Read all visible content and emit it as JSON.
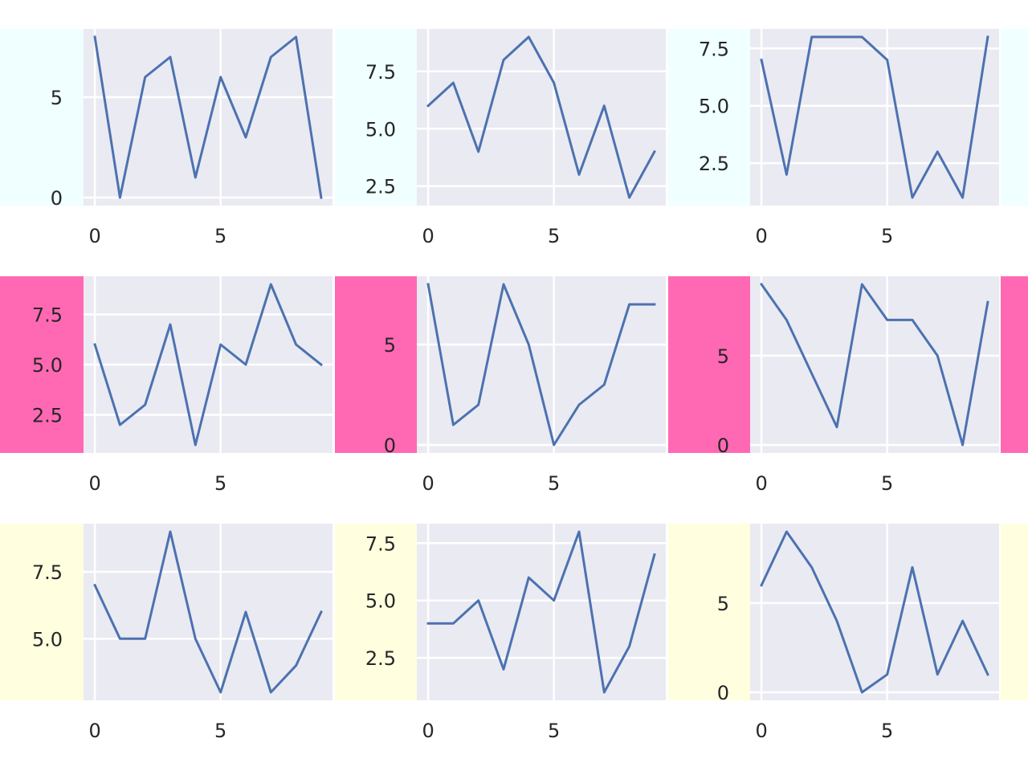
{
  "chart_data": [
    {
      "type": "line",
      "row_color": "#F0FFFF",
      "x": [
        0,
        1,
        2,
        3,
        4,
        5,
        6,
        7,
        8,
        9
      ],
      "y": [
        8,
        0,
        6,
        7,
        1,
        6,
        3,
        7,
        8,
        0
      ],
      "ylim": [
        -0.4,
        8.4
      ],
      "xlim": [
        -0.45,
        9.45
      ],
      "xticks": [
        0,
        5
      ],
      "yticks": [
        0,
        5
      ],
      "ytick_labels": [
        "0",
        "5"
      ],
      "grid": true
    },
    {
      "type": "line",
      "row_color": "#F0FFFF",
      "x": [
        0,
        1,
        2,
        3,
        4,
        5,
        6,
        7,
        8,
        9
      ],
      "y": [
        6,
        7,
        4,
        8,
        9,
        7,
        3,
        6,
        2,
        4
      ],
      "ylim": [
        1.65,
        9.35
      ],
      "xlim": [
        -0.45,
        9.45
      ],
      "xticks": [
        0,
        5
      ],
      "yticks": [
        2.5,
        5,
        7.5
      ],
      "ytick_labels": [
        "2.5",
        "5.0",
        "7.5"
      ],
      "grid": true
    },
    {
      "type": "line",
      "row_color": "#F0FFFF",
      "x": [
        0,
        1,
        2,
        3,
        4,
        5,
        6,
        7,
        8,
        9
      ],
      "y": [
        7,
        2,
        8,
        8,
        8,
        7,
        1,
        3,
        1,
        8
      ],
      "ylim": [
        0.65,
        8.35
      ],
      "xlim": [
        -0.45,
        9.45
      ],
      "xticks": [
        0,
        5
      ],
      "yticks": [
        2.5,
        5,
        7.5
      ],
      "ytick_labels": [
        "2.5",
        "5.0",
        "7.5"
      ],
      "grid": true
    },
    {
      "type": "line",
      "row_color": "#FF69B4",
      "x": [
        0,
        1,
        2,
        3,
        4,
        5,
        6,
        7,
        8,
        9
      ],
      "y": [
        6,
        2,
        3,
        7,
        1,
        6,
        5,
        9,
        6,
        5
      ],
      "ylim": [
        0.6,
        9.4
      ],
      "xlim": [
        -0.45,
        9.45
      ],
      "xticks": [
        0,
        5
      ],
      "yticks": [
        2.5,
        5,
        7.5
      ],
      "ytick_labels": [
        "2.5",
        "5.0",
        "7.5"
      ],
      "grid": true
    },
    {
      "type": "line",
      "row_color": "#FF69B4",
      "x": [
        0,
        1,
        2,
        3,
        4,
        5,
        6,
        7,
        8,
        9
      ],
      "y": [
        8,
        1,
        2,
        8,
        5,
        0,
        2,
        3,
        7,
        7
      ],
      "ylim": [
        -0.4,
        8.4
      ],
      "xlim": [
        -0.45,
        9.45
      ],
      "xticks": [
        0,
        5
      ],
      "yticks": [
        0,
        5
      ],
      "ytick_labels": [
        "0",
        "5"
      ],
      "grid": true
    },
    {
      "type": "line",
      "row_color": "#FF69B4",
      "x": [
        0,
        1,
        2,
        3,
        4,
        5,
        6,
        7,
        8,
        9
      ],
      "y": [
        9,
        7,
        4,
        1,
        9,
        7,
        7,
        5,
        0,
        8
      ],
      "ylim": [
        -0.45,
        9.45
      ],
      "xlim": [
        -0.45,
        9.45
      ],
      "xticks": [
        0,
        5
      ],
      "yticks": [
        0,
        5
      ],
      "ytick_labels": [
        "0",
        "5"
      ],
      "grid": true
    },
    {
      "type": "line",
      "row_color": "#FFFFE0",
      "x": [
        0,
        1,
        2,
        3,
        4,
        5,
        6,
        7,
        8,
        9
      ],
      "y": [
        7,
        5,
        5,
        9,
        5,
        3,
        6,
        3,
        4,
        6
      ],
      "ylim": [
        2.7,
        9.3
      ],
      "xlim": [
        -0.45,
        9.45
      ],
      "xticks": [
        0,
        5
      ],
      "yticks": [
        5,
        7.5
      ],
      "ytick_labels": [
        "5.0",
        "7.5"
      ],
      "grid": true
    },
    {
      "type": "line",
      "row_color": "#FFFFE0",
      "x": [
        0,
        1,
        2,
        3,
        4,
        5,
        6,
        7,
        8,
        9
      ],
      "y": [
        4,
        4,
        5,
        2,
        6,
        5,
        8,
        1,
        3,
        7
      ],
      "ylim": [
        0.65,
        8.35
      ],
      "xlim": [
        -0.45,
        9.45
      ],
      "xticks": [
        0,
        5
      ],
      "yticks": [
        2.5,
        5,
        7.5
      ],
      "ytick_labels": [
        "2.5",
        "5.0",
        "7.5"
      ],
      "grid": true
    },
    {
      "type": "line",
      "row_color": "#FFFFE0",
      "x": [
        0,
        1,
        2,
        3,
        4,
        5,
        6,
        7,
        8,
        9
      ],
      "y": [
        6,
        9,
        7,
        4,
        0,
        1,
        7,
        1,
        4,
        1
      ],
      "ylim": [
        -0.45,
        9.45
      ],
      "xlim": [
        -0.45,
        9.45
      ],
      "xticks": [
        0,
        5
      ],
      "yticks": [
        0,
        5
      ],
      "ytick_labels": [
        "0",
        "5"
      ],
      "grid": true
    }
  ],
  "style": {
    "plot_bg": "#EAEAF2",
    "line_color": "#4C72B0",
    "grid_color": "#FFFFFF"
  }
}
